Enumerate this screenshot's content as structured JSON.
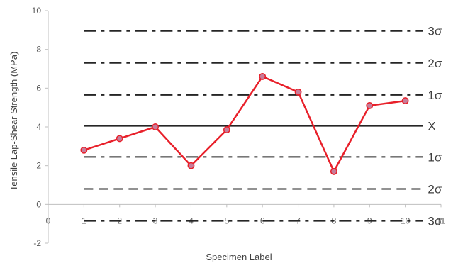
{
  "chart_data": {
    "type": "line",
    "xlabel": "Specimen Label",
    "ylabel": "Tensile Lap-Shear Strength (MPa)",
    "xlim": [
      0,
      11
    ],
    "ylim": [
      -2,
      10
    ],
    "x_ticks": [
      "0",
      "1",
      "2",
      "3",
      "4",
      "5",
      "6",
      "7",
      "8",
      "9",
      "10",
      "11"
    ],
    "y_ticks": [
      "-2",
      "0",
      "2",
      "4",
      "6",
      "8",
      "10"
    ],
    "grid": false,
    "series": [
      {
        "color": "#e8202a",
        "marker": "circle",
        "x": [
          1,
          2,
          3,
          4,
          5,
          6,
          7,
          8,
          9,
          10
        ],
        "y": [
          2.8,
          3.4,
          4.0,
          2.0,
          3.85,
          6.6,
          5.8,
          1.7,
          5.1,
          5.35
        ]
      }
    ],
    "control_lines": [
      {
        "label": "3σ",
        "y": 8.95,
        "style": "dash-dot"
      },
      {
        "label": "2σ",
        "y": 7.3,
        "style": "dash-dot"
      },
      {
        "label": "1σ",
        "y": 5.65,
        "style": "dash-dot"
      },
      {
        "label": "X̄",
        "y": 4.05,
        "style": "solid"
      },
      {
        "label": "1σ",
        "y": 2.45,
        "style": "dash-dot"
      },
      {
        "label": "2σ",
        "y": 0.8,
        "style": "dash"
      },
      {
        "label": "3σ",
        "y": -0.85,
        "style": "dash-dot"
      }
    ],
    "colors": {
      "line": "#e8202a",
      "marker_fill": "#c77d9a",
      "control_line": "#262626",
      "axis": "#bfbfbf"
    }
  }
}
